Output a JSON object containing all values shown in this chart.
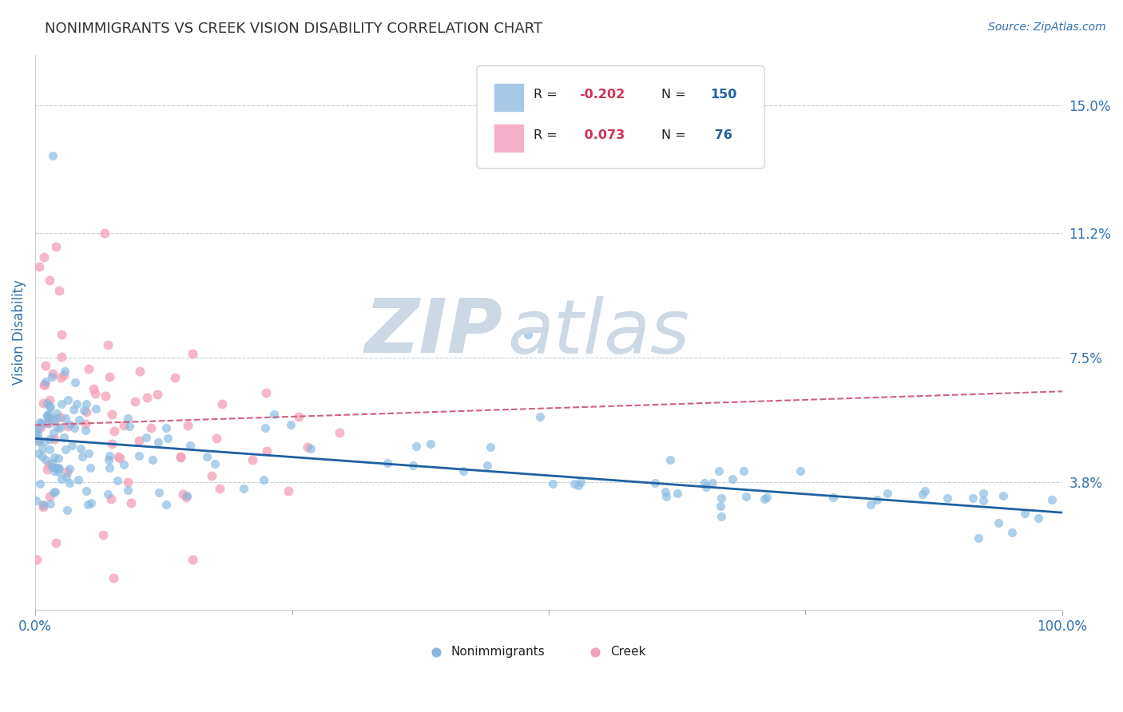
{
  "title": "NONIMMIGRANTS VS CREEK VISION DISABILITY CORRELATION CHART",
  "source_text": "Source: ZipAtlas.com",
  "ylabel": "Vision Disability",
  "watermark_zip": "ZIP",
  "watermark_atlas": "atlas",
  "xlim": [
    0,
    100
  ],
  "ylim": [
    0,
    16.5
  ],
  "yticks": [
    3.8,
    7.5,
    11.2,
    15.0
  ],
  "xtick_labels": [
    "0.0%",
    "100.0%"
  ],
  "xtick_vals": [
    0,
    100
  ],
  "xtick_minor_vals": [
    25,
    50,
    75
  ],
  "ytick_labels": [
    "3.8%",
    "7.5%",
    "11.2%",
    "15.0%"
  ],
  "series1_name": "Nonimmigrants",
  "series2_name": "Creek",
  "series1_color": "#85b8e0",
  "series2_color": "#f4a0b8",
  "series1_R": -0.202,
  "series1_N": 150,
  "series2_R": 0.073,
  "series2_N": 76,
  "trend1_color": "#2060a0",
  "trend2_color": "#d06080",
  "trend1_start_y": 5.1,
  "trend1_end_y": 2.9,
  "trend2_start_y": 5.5,
  "trend2_end_y": 6.5,
  "title_color": "#333333",
  "axis_label_color": "#3070b0",
  "tick_label_color": "#3070b0",
  "background_color": "#ffffff",
  "grid_color": "#c0cdd8",
  "watermark_color": "#ccd8e4",
  "legend_R_color": "#cc3355",
  "legend_N_color": "#2060a0",
  "legend_text_color": "#222222"
}
